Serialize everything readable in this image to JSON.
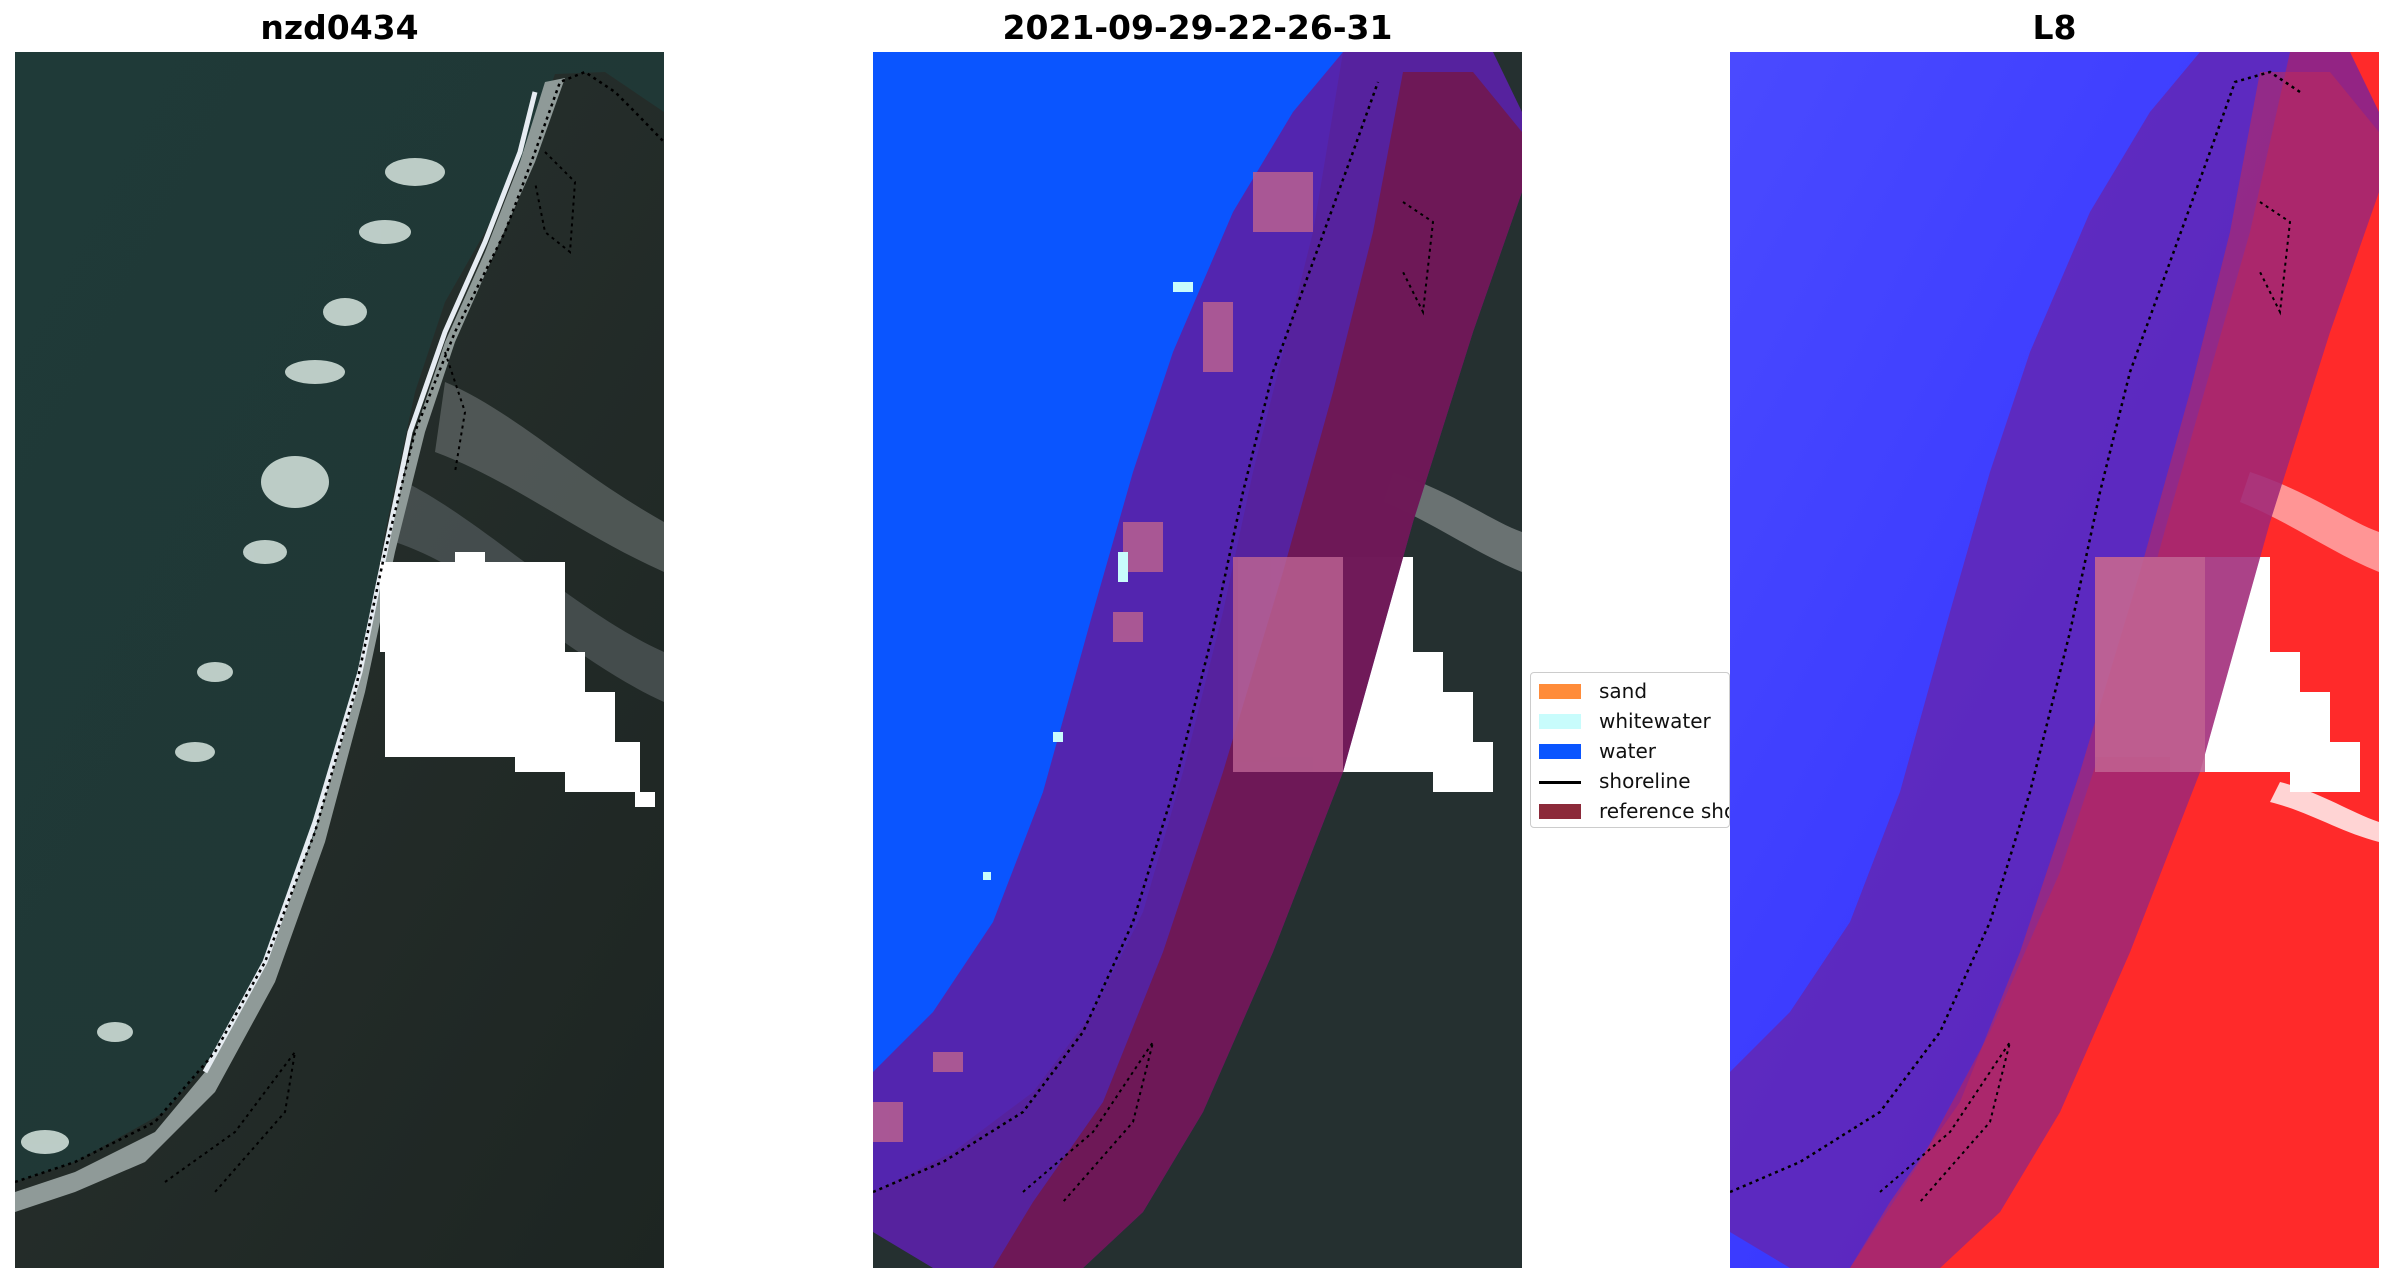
{
  "panels": [
    {
      "title": "nzd0434"
    },
    {
      "title": "2021-09-29-22-26-31"
    },
    {
      "title": "L8"
    }
  ],
  "legend": {
    "items": [
      {
        "label": "sand",
        "color": "#ff8c3a"
      },
      {
        "label": "whitewater",
        "color": "#c8fcfc"
      },
      {
        "label": "water",
        "color": "#0a55ff"
      },
      {
        "label": "shoreline",
        "color": "#000000"
      },
      {
        "label": "reference shoreline buffer",
        "color": "#8c2a3a"
      }
    ]
  },
  "colors": {
    "ocean_rgb": "#1f3634",
    "land_rgb": "#1e2a26",
    "classified_water": "#0a55ff",
    "buffer_overlay": "#8c2a3a",
    "index_water": "#3a3aff",
    "index_land": "#ff2020"
  }
}
